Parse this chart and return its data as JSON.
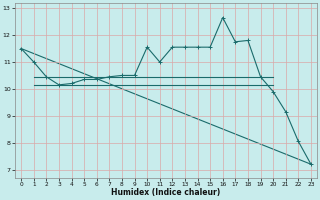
{
  "xlabel": "Humidex (Indice chaleur)",
  "background_color": "#c8ecec",
  "grid_color": "#daa8a8",
  "line_color": "#1a6b6b",
  "xlim": [
    -0.5,
    23.5
  ],
  "ylim": [
    6.7,
    13.2
  ],
  "yticks": [
    7,
    8,
    9,
    10,
    11,
    12,
    13
  ],
  "xticks": [
    0,
    1,
    2,
    3,
    4,
    5,
    6,
    7,
    8,
    9,
    10,
    11,
    12,
    13,
    14,
    15,
    16,
    17,
    18,
    19,
    20,
    21,
    22,
    23
  ],
  "series_main": {
    "x": [
      0,
      1,
      2,
      3,
      4,
      5,
      6,
      7,
      8,
      9,
      10,
      11,
      12,
      13,
      14,
      15,
      16,
      17,
      18,
      19,
      20,
      21,
      22,
      23
    ],
    "y": [
      11.5,
      11.0,
      10.45,
      10.15,
      10.2,
      10.35,
      10.35,
      10.45,
      10.5,
      10.5,
      11.55,
      11.0,
      11.55,
      11.55,
      11.55,
      11.55,
      12.65,
      11.75,
      11.8,
      10.45,
      9.9,
      9.15,
      8.05,
      7.2
    ]
  },
  "series_flat1": {
    "x": [
      1,
      2,
      3,
      4,
      5,
      6,
      7,
      8,
      9,
      10,
      11,
      12,
      13,
      14,
      15,
      16,
      17,
      18,
      19,
      20
    ],
    "y": [
      10.45,
      10.45,
      10.45,
      10.45,
      10.45,
      10.45,
      10.45,
      10.45,
      10.45,
      10.45,
      10.45,
      10.45,
      10.45,
      10.45,
      10.45,
      10.45,
      10.45,
      10.45,
      10.45,
      10.45
    ]
  },
  "series_flat2": {
    "x": [
      1,
      2,
      3,
      4,
      5,
      6,
      7,
      8,
      9,
      10,
      11,
      12,
      13,
      14,
      15,
      16,
      17,
      18,
      19,
      20
    ],
    "y": [
      10.15,
      10.15,
      10.15,
      10.15,
      10.15,
      10.15,
      10.15,
      10.15,
      10.15,
      10.15,
      10.15,
      10.15,
      10.15,
      10.15,
      10.15,
      10.15,
      10.15,
      10.15,
      10.15,
      10.15
    ]
  },
  "series_diagonal": {
    "x": [
      0,
      23
    ],
    "y": [
      11.5,
      7.2
    ]
  }
}
